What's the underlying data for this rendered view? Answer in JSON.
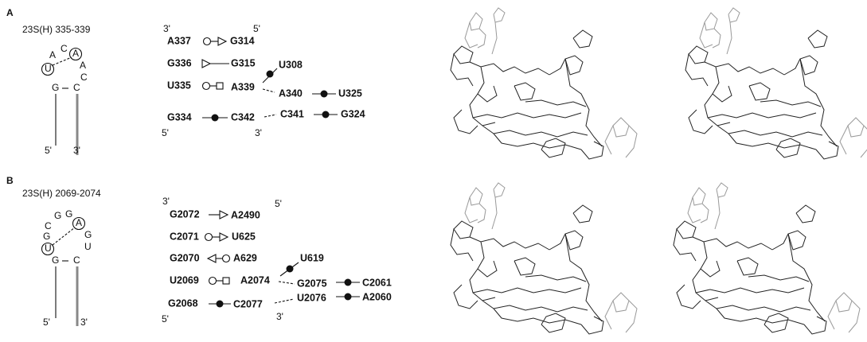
{
  "panels": [
    {
      "label": "A",
      "title": "23S(H) 335-339",
      "hairpin": {
        "loop": [
          "A",
          "C",
          "A",
          "A",
          "C",
          "U",
          "G",
          "C"
        ],
        "ends": [
          "5'",
          "3'"
        ]
      },
      "interactions": {
        "strand_ends": [
          "3'",
          "5'",
          "5'",
          "3'"
        ],
        "nucleotides": [
          "A337",
          "G314",
          "G336",
          "G315",
          "U308",
          "U335",
          "A339",
          "A340",
          "U325",
          "G334",
          "C342",
          "C341",
          "G324"
        ]
      }
    },
    {
      "label": "B",
      "title": "23S(H) 2069-2074",
      "hairpin": {
        "loop": [
          "G",
          "G",
          "C",
          "A",
          "G",
          "G",
          "U",
          "U",
          "G",
          "C"
        ],
        "ends": [
          "5'",
          "3'"
        ]
      },
      "interactions": {
        "strand_ends": [
          "3'",
          "5'",
          "5'",
          "3'"
        ],
        "nucleotides": [
          "G2072",
          "A2490",
          "C2071",
          "U625",
          "G2070",
          "A629",
          "U619",
          "U2069",
          "A2074",
          "G2075",
          "C2061",
          "G2068",
          "C2077",
          "U2076",
          "A2060"
        ]
      }
    }
  ]
}
